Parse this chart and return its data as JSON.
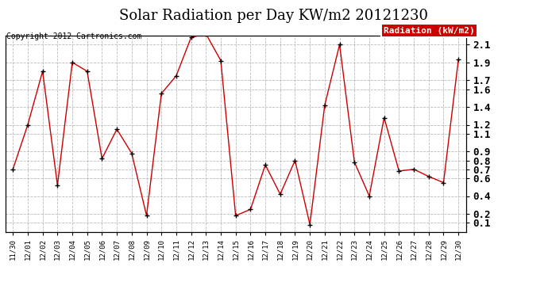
{
  "title": "Solar Radiation per Day KW/m2 20121230",
  "copyright": "Copyright 2012 Cartronics.com",
  "legend_label": "Radiation (kW/m2)",
  "dates": [
    "11/30",
    "12/01",
    "12/02",
    "12/03",
    "12/04",
    "12/05",
    "12/06",
    "12/07",
    "12/08",
    "12/09",
    "12/10",
    "12/11",
    "12/12",
    "12/13",
    "12/14",
    "12/15",
    "12/16",
    "12/17",
    "12/18",
    "12/19",
    "12/20",
    "12/21",
    "12/22",
    "12/23",
    "12/24",
    "12/25",
    "12/26",
    "12/27",
    "12/28",
    "12/29",
    "12/30"
  ],
  "values": [
    0.7,
    1.2,
    1.8,
    0.52,
    1.9,
    1.8,
    0.82,
    1.15,
    0.88,
    0.18,
    1.55,
    1.75,
    2.18,
    2.22,
    1.92,
    0.18,
    0.25,
    0.75,
    0.42,
    0.8,
    0.08,
    1.42,
    2.1,
    0.78,
    0.4,
    1.28,
    0.68,
    0.7,
    0.62,
    0.55,
    1.93
  ],
  "line_color": "#cc0000",
  "marker_color": "#000000",
  "bg_color": "#ffffff",
  "grid_color": "#aaaaaa",
  "title_fontsize": 13,
  "ylim_min": 0.0,
  "ylim_max": 2.2,
  "yticks": [
    0.1,
    0.2,
    0.4,
    0.6,
    0.7,
    0.8,
    0.9,
    1.1,
    1.2,
    1.4,
    1.6,
    1.7,
    1.9,
    2.1
  ],
  "legend_bg": "#cc0000",
  "legend_text_color": "#ffffff"
}
